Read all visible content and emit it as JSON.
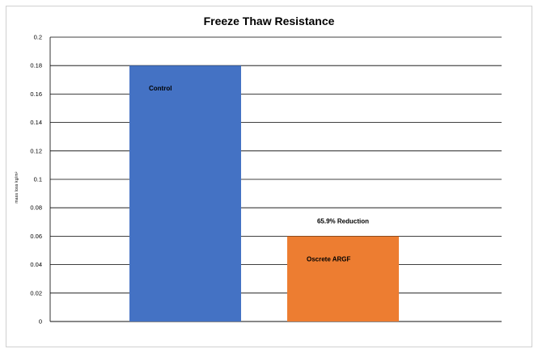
{
  "chart_data": {
    "type": "bar",
    "title": "Freeze Thaw Resistance",
    "xlabel": "",
    "ylabel": "mass loss kg/m²",
    "ylim": [
      0,
      0.2
    ],
    "yticks": [
      "0",
      "0.02",
      "0.04",
      "0.06",
      "0.08",
      "0.1",
      "0.12",
      "0.14",
      "0.16",
      "0.18",
      "0.2"
    ],
    "grid": true,
    "categories": [
      "Control",
      "Oscrete ARGF"
    ],
    "values": [
      0.18,
      0.06
    ],
    "bar_colors": [
      "#4472c4",
      "#ed7d31"
    ],
    "bar_labels": [
      "Control",
      "Oscrete ARGF"
    ],
    "annotation": "65.9% Reduction"
  }
}
